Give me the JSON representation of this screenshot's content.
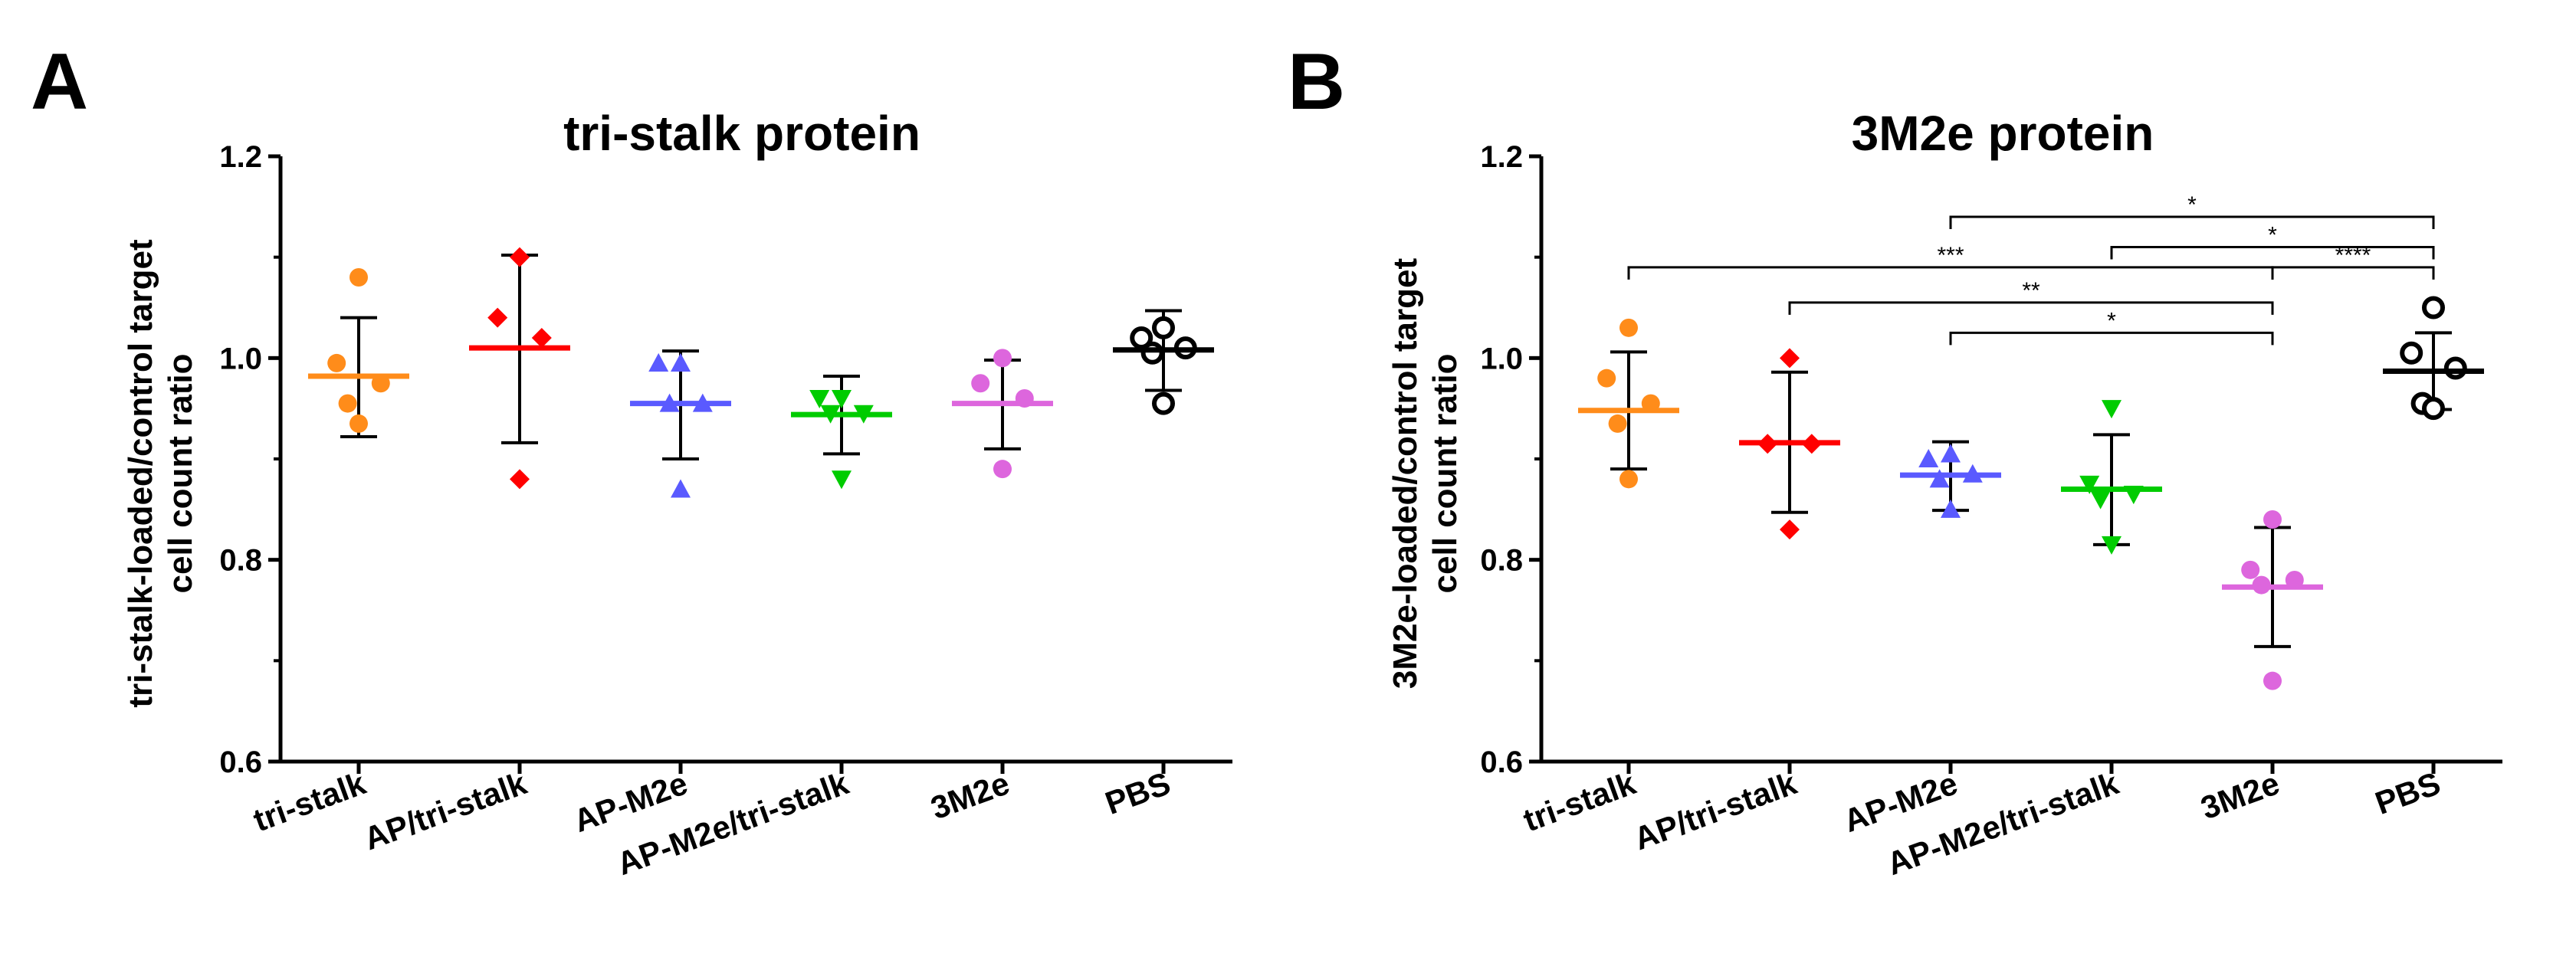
{
  "chart_data": [
    {
      "type": "scatter",
      "panel_label": "A",
      "title": "tri-stalk protein",
      "ylabel_line1": "tri-stalk-loaded/control target",
      "ylabel_line2": "cell count ratio",
      "ylim": [
        0.6,
        1.2
      ],
      "yticks": [
        "0.6",
        "0.8",
        "1.0",
        "1.2"
      ],
      "categories": [
        "tri-stalk",
        "AP/tri-stalk",
        "AP-M2e",
        "AP-M2e/tri-stalk",
        "3M2e",
        "PBS"
      ],
      "groups": [
        {
          "name": "tri-stalk",
          "color": "#ff8c1a",
          "marker": "circle",
          "points": [
            1.08,
            0.995,
            0.975,
            0.955,
            0.935
          ],
          "mean": 0.982,
          "sd_low": 0.922,
          "sd_high": 1.04
        },
        {
          "name": "AP/tri-stalk",
          "color": "#ff0000",
          "marker": "diamond",
          "points": [
            1.1,
            1.04,
            1.02,
            0.88
          ],
          "mean": 1.01,
          "sd_low": 0.916,
          "sd_high": 1.102
        },
        {
          "name": "AP-M2e",
          "color": "#5a5aff",
          "marker": "triangle-up",
          "points": [
            0.995,
            0.995,
            0.955,
            0.955,
            0.87
          ],
          "mean": 0.955,
          "sd_low": 0.9,
          "sd_high": 1.007
        },
        {
          "name": "AP-M2e/tri-stalk",
          "color": "#00cc00",
          "marker": "triangle-down",
          "points": [
            0.96,
            0.96,
            0.945,
            0.945,
            0.88
          ],
          "mean": 0.944,
          "sd_low": 0.905,
          "sd_high": 0.982
        },
        {
          "name": "3M2e",
          "color": "#dd66dd",
          "marker": "circle",
          "points": [
            1.0,
            0.975,
            0.96,
            0.89
          ],
          "mean": 0.955,
          "sd_low": 0.91,
          "sd_high": 0.998
        },
        {
          "name": "PBS",
          "color": "#000000",
          "marker": "open-circle",
          "points": [
            1.03,
            1.02,
            1.01,
            1.005,
            0.955
          ],
          "mean": 1.008,
          "sd_low": 0.968,
          "sd_high": 1.047
        }
      ],
      "significance": []
    },
    {
      "type": "scatter",
      "panel_label": "B",
      "title": "3M2e protein",
      "ylabel_line1": "3M2e-loaded/control target",
      "ylabel_line2": "cell count ratio",
      "ylim": [
        0.6,
        1.2
      ],
      "yticks": [
        "0.6",
        "0.8",
        "1.0",
        "1.2"
      ],
      "categories": [
        "tri-stalk",
        "AP/tri-stalk",
        "AP-M2e",
        "AP-M2e/tri-stalk",
        "3M2e",
        "PBS"
      ],
      "groups": [
        {
          "name": "tri-stalk",
          "color": "#ff8c1a",
          "marker": "circle",
          "points": [
            1.03,
            0.98,
            0.955,
            0.935,
            0.88
          ],
          "mean": 0.948,
          "sd_low": 0.89,
          "sd_high": 1.006
        },
        {
          "name": "AP/tri-stalk",
          "color": "#ff0000",
          "marker": "diamond",
          "points": [
            1.0,
            0.915,
            0.915,
            0.83
          ],
          "mean": 0.916,
          "sd_low": 0.847,
          "sd_high": 0.986
        },
        {
          "name": "AP-M2e",
          "color": "#5a5aff",
          "marker": "triangle-up",
          "points": [
            0.905,
            0.9,
            0.885,
            0.88,
            0.85
          ],
          "mean": 0.884,
          "sd_low": 0.849,
          "sd_high": 0.917
        },
        {
          "name": "AP-M2e/tri-stalk",
          "color": "#00cc00",
          "marker": "triangle-down",
          "points": [
            0.95,
            0.875,
            0.865,
            0.86,
            0.815
          ],
          "mean": 0.87,
          "sd_low": 0.815,
          "sd_high": 0.924
        },
        {
          "name": "3M2e",
          "color": "#dd66dd",
          "marker": "circle",
          "points": [
            0.84,
            0.79,
            0.78,
            0.775,
            0.68
          ],
          "mean": 0.773,
          "sd_low": 0.714,
          "sd_high": 0.832
        },
        {
          "name": "PBS",
          "color": "#000000",
          "marker": "open-circle",
          "points": [
            1.05,
            1.005,
            0.99,
            0.955,
            0.95
          ],
          "mean": 0.987,
          "sd_low": 0.949,
          "sd_high": 1.025
        }
      ],
      "significance": [
        {
          "from": 2,
          "to": 5,
          "y": 1.14,
          "label": "*"
        },
        {
          "from": 3,
          "to": 5,
          "y": 1.11,
          "label": "*"
        },
        {
          "from": 0,
          "to": 4,
          "y": 1.09,
          "label": "***"
        },
        {
          "from": 4,
          "to": 5,
          "y": 1.09,
          "label": "****"
        },
        {
          "from": 1,
          "to": 4,
          "y": 1.055,
          "label": "**"
        },
        {
          "from": 2,
          "to": 4,
          "y": 1.025,
          "label": "*"
        }
      ]
    }
  ]
}
